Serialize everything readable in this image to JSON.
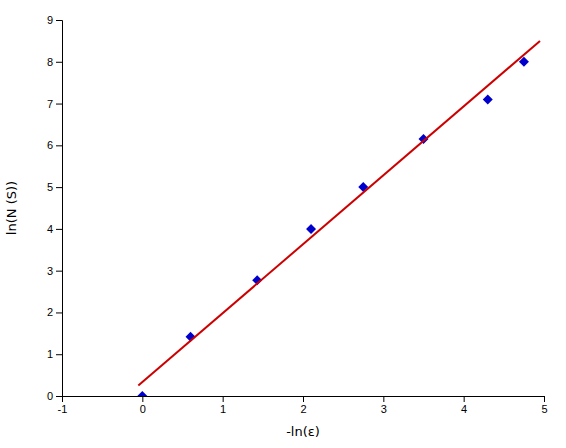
{
  "chart_data": {
    "type": "scatter",
    "xlabel": "-ln(ε)",
    "ylabel": "ln(N (S))",
    "series": [
      {
        "type": "scatter",
        "marker": "diamond",
        "color": "#0000cc",
        "x": [
          0.0,
          0.6,
          1.43,
          2.1,
          2.75,
          3.5,
          4.3,
          4.75
        ],
        "values": [
          0.0,
          1.42,
          2.77,
          4.0,
          5.0,
          6.15,
          7.1,
          8.0
        ]
      },
      {
        "type": "line",
        "line_style": "solid",
        "color": "#cc0000",
        "x": [
          -0.05,
          4.95
        ],
        "values": [
          0.25,
          8.5
        ]
      }
    ],
    "xlim": [
      -1,
      5
    ],
    "ylim": [
      0,
      9
    ],
    "xticks": [
      -1,
      0,
      1,
      2,
      3,
      4,
      5
    ],
    "yticks": [
      0,
      1,
      2,
      3,
      4,
      5,
      6,
      7,
      8,
      9
    ],
    "grid": false
  }
}
